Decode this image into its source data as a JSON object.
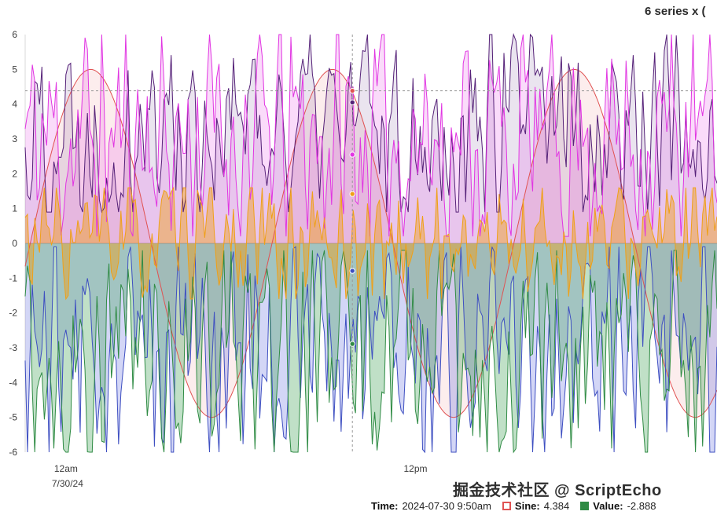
{
  "header": {
    "title": "6 series x ("
  },
  "watermark": {
    "text": "掘金技术社区 @ ScriptEcho"
  },
  "tooltip": {
    "time_label": "Time:",
    "time_value": "2024-07-30 9:50am",
    "items": [
      {
        "label": "Sine:",
        "value": "4.384",
        "color": "#e05252",
        "marker": "outline"
      },
      {
        "label": "Value:",
        "value": "-2.888",
        "color": "#2f8b44",
        "marker": "filled"
      }
    ]
  },
  "colors": {
    "background": "#ffffff",
    "axis": "#d9d9d9",
    "zero_line": "#b5b5b5",
    "tick_text": "#3c3c3c",
    "crosshair": "#9a9a9a",
    "title_text": "#2b2b2b",
    "watermark_text": "#2f2f2f"
  },
  "chart_data": {
    "type": "line",
    "title": "6 series x (",
    "points_per_series": 290,
    "x_axis": {
      "unit": "time",
      "domain_hours": [
        -1.4,
        22.35
      ],
      "ticks": [
        {
          "t": 0,
          "label": "12am",
          "sublabel": "7/30/24"
        },
        {
          "t": 12,
          "label": "12pm",
          "sublabel": ""
        }
      ]
    },
    "y_axis": {
      "min": -6,
      "max": 6,
      "tick_step": 1,
      "ticks": [
        6,
        5,
        4,
        3,
        2,
        1,
        0,
        -1,
        -2,
        -3,
        -4,
        -5,
        -6
      ]
    },
    "crosshair": {
      "t_hours": 9.833,
      "time_text": "2024-07-30 9:50am",
      "hline_value": 4.384
    },
    "series": [
      {
        "name": "Sine",
        "color": "#e05252",
        "fill": "rgba(224,82,82,0.10)",
        "shape": "sine",
        "amplitude": 5,
        "period_hours": 8.3,
        "peak_hour": 9.15,
        "value_at_crosshair": 4.384
      },
      {
        "name": "Purple noise",
        "color": "#552178",
        "fill": "rgba(85,33,120,0.12)",
        "shape": "noise",
        "min": 0.9,
        "max": 6,
        "seed": 22,
        "value_at_crosshair": 4.05
      },
      {
        "name": "Magenta noise",
        "color": "#e135e2",
        "fill": "rgba(225,53,226,0.18)",
        "shape": "noise",
        "min": 0.2,
        "max": 6,
        "seed": 11,
        "value_at_crosshair": 2.55
      },
      {
        "name": "Blue noise",
        "color": "#3e4fc1",
        "fill": "rgba(110,120,225,0.30)",
        "shape": "noise",
        "min": -6,
        "max": -0.1,
        "seed": 44,
        "value_at_crosshair": -0.79
      },
      {
        "name": "Value",
        "color": "#2f8b44",
        "fill": "rgba(60,160,80,0.32)",
        "shape": "noise",
        "min": -6,
        "max": -0.2,
        "seed": 55,
        "value_at_crosshair": -2.888
      },
      {
        "name": "Orange noise",
        "color": "#efa018",
        "fill": "rgba(239,160,24,0.45)",
        "shape": "noise",
        "min": -1.6,
        "max": 1.6,
        "seed": 33,
        "value_at_crosshair": 1.42
      }
    ]
  }
}
